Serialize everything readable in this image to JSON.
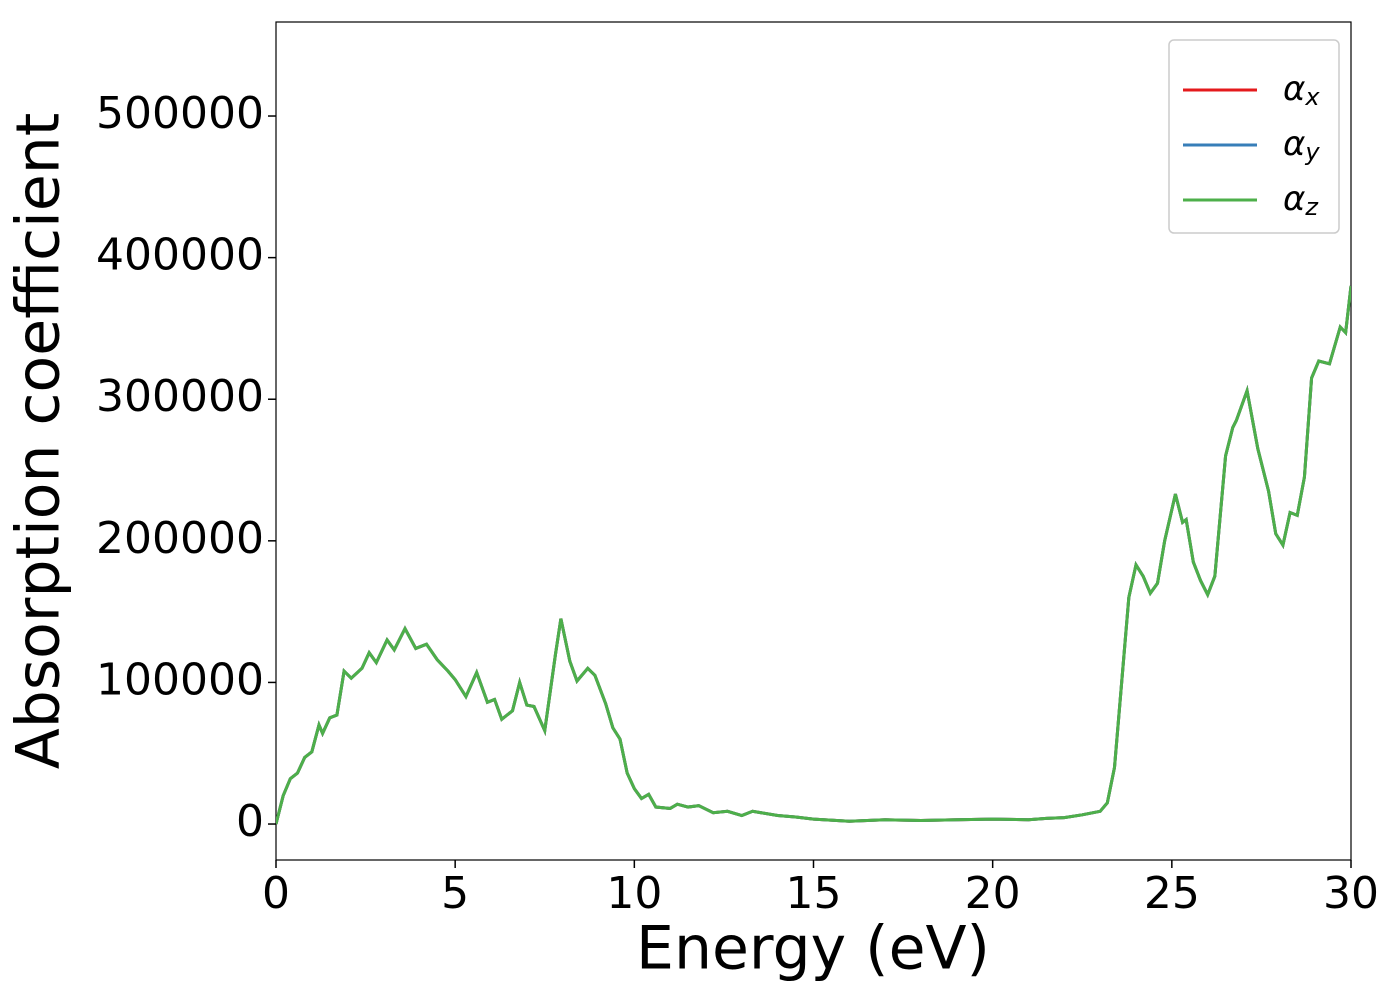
{
  "chart_data": {
    "type": "line",
    "xlabel": "Energy (eV)",
    "ylabel": "Absorption coefficient",
    "x": [
      0,
      0.2,
      0.4,
      0.6,
      0.8,
      1.0,
      1.2,
      1.3,
      1.5,
      1.7,
      1.9,
      2.1,
      2.4,
      2.6,
      2.8,
      3.1,
      3.3,
      3.6,
      3.9,
      4.2,
      4.5,
      4.8,
      5.0,
      5.3,
      5.6,
      5.9,
      6.1,
      6.3,
      6.6,
      6.8,
      7.0,
      7.2,
      7.5,
      7.8,
      7.95,
      8.2,
      8.4,
      8.7,
      8.9,
      9.2,
      9.4,
      9.6,
      9.8,
      10.0,
      10.2,
      10.4,
      10.6,
      11.0,
      11.2,
      11.5,
      11.8,
      12.2,
      12.6,
      13.0,
      13.3,
      14.0,
      14.5,
      15,
      16,
      17,
      18,
      19,
      20,
      21,
      21.5,
      22,
      22.5,
      23,
      23.2,
      23.4,
      23.6,
      23.8,
      24.0,
      24.2,
      24.4,
      24.6,
      24.8,
      25.1,
      25.3,
      25.4,
      25.6,
      25.8,
      26.0,
      26.2,
      26.5,
      26.7,
      26.8,
      27.1,
      27.4,
      27.7,
      27.9,
      28.1,
      28.3,
      28.5,
      28.7,
      28.9,
      29.1,
      29.4,
      29.7,
      29.85,
      30
    ],
    "series": [
      {
        "name": "αx",
        "color": "#e41a1c",
        "values": [
          0,
          20000,
          32000,
          36000,
          47000,
          51000,
          70000,
          64000,
          75000,
          77000,
          108000,
          103000,
          110000,
          121000,
          114000,
          130000,
          123000,
          138000,
          124000,
          127000,
          116000,
          108000,
          102000,
          90000,
          107000,
          86000,
          88000,
          74000,
          80000,
          100000,
          84000,
          83000,
          66000,
          120000,
          145000,
          115000,
          101000,
          110000,
          105000,
          85000,
          68000,
          60000,
          36000,
          25000,
          18000,
          21000,
          12000,
          11000,
          14000,
          12000,
          13000,
          8000,
          9000,
          6000,
          9000,
          6000,
          5000,
          3500,
          2000,
          3000,
          2500,
          3000,
          3500,
          3000,
          4000,
          4500,
          6500,
          9000,
          15000,
          40000,
          100000,
          160000,
          183000,
          175000,
          163000,
          170000,
          200000,
          233000,
          213000,
          215000,
          185000,
          172000,
          162000,
          175000,
          260000,
          280000,
          285000,
          306000,
          265000,
          235000,
          205000,
          197000,
          220000,
          218000,
          245000,
          315000,
          327000,
          325000,
          351000,
          347000,
          380000
        ]
      },
      {
        "name": "αy",
        "color": "#377eb8",
        "values": [
          0,
          20000,
          32000,
          36000,
          47000,
          51000,
          70000,
          64000,
          75000,
          77000,
          108000,
          103000,
          110000,
          121000,
          114000,
          130000,
          123000,
          138000,
          124000,
          127000,
          116000,
          108000,
          102000,
          90000,
          107000,
          86000,
          88000,
          74000,
          80000,
          100000,
          84000,
          83000,
          66000,
          120000,
          145000,
          115000,
          101000,
          110000,
          105000,
          85000,
          68000,
          60000,
          36000,
          25000,
          18000,
          21000,
          12000,
          11000,
          14000,
          12000,
          13000,
          8000,
          9000,
          6000,
          9000,
          6000,
          5000,
          3500,
          2000,
          3000,
          2500,
          3000,
          3500,
          3000,
          4000,
          4500,
          6500,
          9000,
          15000,
          40000,
          100000,
          160000,
          183000,
          175000,
          163000,
          170000,
          200000,
          233000,
          213000,
          215000,
          185000,
          172000,
          162000,
          175000,
          260000,
          280000,
          285000,
          306000,
          265000,
          235000,
          205000,
          197000,
          220000,
          218000,
          245000,
          315000,
          327000,
          325000,
          351000,
          347000,
          380000
        ]
      },
      {
        "name": "αz",
        "color": "#4daf4a",
        "values": [
          0,
          20000,
          32000,
          36000,
          47000,
          51000,
          70000,
          64000,
          75000,
          77000,
          108000,
          103000,
          110000,
          121000,
          114000,
          130000,
          123000,
          138000,
          124000,
          127000,
          116000,
          108000,
          102000,
          90000,
          107000,
          86000,
          88000,
          74000,
          80000,
          100000,
          84000,
          83000,
          66000,
          120000,
          145000,
          115000,
          101000,
          110000,
          105000,
          85000,
          68000,
          60000,
          36000,
          25000,
          18000,
          21000,
          12000,
          11000,
          14000,
          12000,
          13000,
          8000,
          9000,
          6000,
          9000,
          6000,
          5000,
          3500,
          2000,
          3000,
          2500,
          3000,
          3500,
          3000,
          4000,
          4500,
          6500,
          9000,
          15000,
          40000,
          100000,
          160000,
          183000,
          175000,
          163000,
          170000,
          200000,
          233000,
          213000,
          215000,
          185000,
          172000,
          162000,
          175000,
          260000,
          280000,
          285000,
          306000,
          265000,
          235000,
          205000,
          197000,
          220000,
          218000,
          245000,
          315000,
          327000,
          325000,
          351000,
          347000,
          380000
        ]
      }
    ],
    "xlim": [
      0,
      30
    ],
    "xticks": [
      0,
      5,
      10,
      15,
      20,
      25,
      30
    ],
    "ylim": [
      -25400,
      566400
    ],
    "yticks": [
      0,
      100000,
      200000,
      300000,
      400000,
      500000
    ],
    "grid": false,
    "legend": "upper right"
  }
}
